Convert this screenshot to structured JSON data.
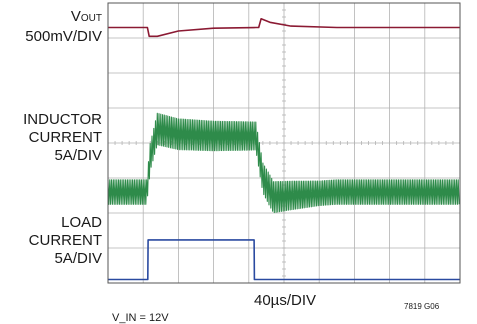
{
  "labels": {
    "vout": {
      "main": "V",
      "sub": "OUT",
      "scale": "500mV/DIV"
    },
    "inductor": {
      "line1": "INDUCTOR",
      "line2": "CURRENT",
      "scale": "5A/DIV"
    },
    "load": {
      "line1": "LOAD",
      "line2": "CURRENT",
      "scale": "5A/DIV"
    },
    "time_scale": "40µs/DIV",
    "figure_id": "7819 G06",
    "condition": "V_IN = 12V"
  },
  "colors": {
    "grid": "#b3b3b3",
    "border": "#555555",
    "vout": "#8b1a33",
    "inductor": "#2e8b4a",
    "load": "#2a4aa0"
  },
  "chart_data": {
    "type": "line",
    "title": "",
    "x_divisions": 10,
    "y_divisions": 8,
    "x_unit": "div (40µs/DIV)",
    "series": [
      {
        "name": "VOUT",
        "unit": "div",
        "points": [
          [
            0,
            7.3
          ],
          [
            1,
            7.3
          ],
          [
            1.12,
            7.3
          ],
          [
            1.17,
            7.05
          ],
          [
            1.4,
            7.05
          ],
          [
            2,
            7.2
          ],
          [
            3,
            7.28
          ],
          [
            4.2,
            7.3
          ],
          [
            4.28,
            7.3
          ],
          [
            4.35,
            7.55
          ],
          [
            4.6,
            7.45
          ],
          [
            5.2,
            7.34
          ],
          [
            6.5,
            7.3
          ],
          [
            10,
            7.3
          ]
        ]
      },
      {
        "name": "INDUCTOR CURRENT",
        "unit": "div",
        "mean": [
          [
            0,
            2.6
          ],
          [
            1.1,
            2.6
          ],
          [
            1.2,
            3.6
          ],
          [
            1.4,
            4.4
          ],
          [
            2,
            4.25
          ],
          [
            3,
            4.2
          ],
          [
            4.2,
            4.2
          ],
          [
            4.4,
            3.0
          ],
          [
            4.7,
            2.45
          ],
          [
            5.2,
            2.5
          ],
          [
            6.5,
            2.6
          ],
          [
            10,
            2.6
          ]
        ],
        "ripple_pp": [
          [
            0,
            0.7
          ],
          [
            1.1,
            0.7
          ],
          [
            1.4,
            0.9
          ],
          [
            4.2,
            0.8
          ],
          [
            4.6,
            0.9
          ],
          [
            6,
            0.7
          ],
          [
            10,
            0.7
          ]
        ]
      },
      {
        "name": "LOAD CURRENT",
        "unit": "div",
        "points": [
          [
            0,
            0.1
          ],
          [
            1.13,
            0.1
          ],
          [
            1.14,
            1.23
          ],
          [
            4.15,
            1.23
          ],
          [
            4.16,
            0.1
          ],
          [
            10,
            0.1
          ]
        ]
      }
    ]
  }
}
